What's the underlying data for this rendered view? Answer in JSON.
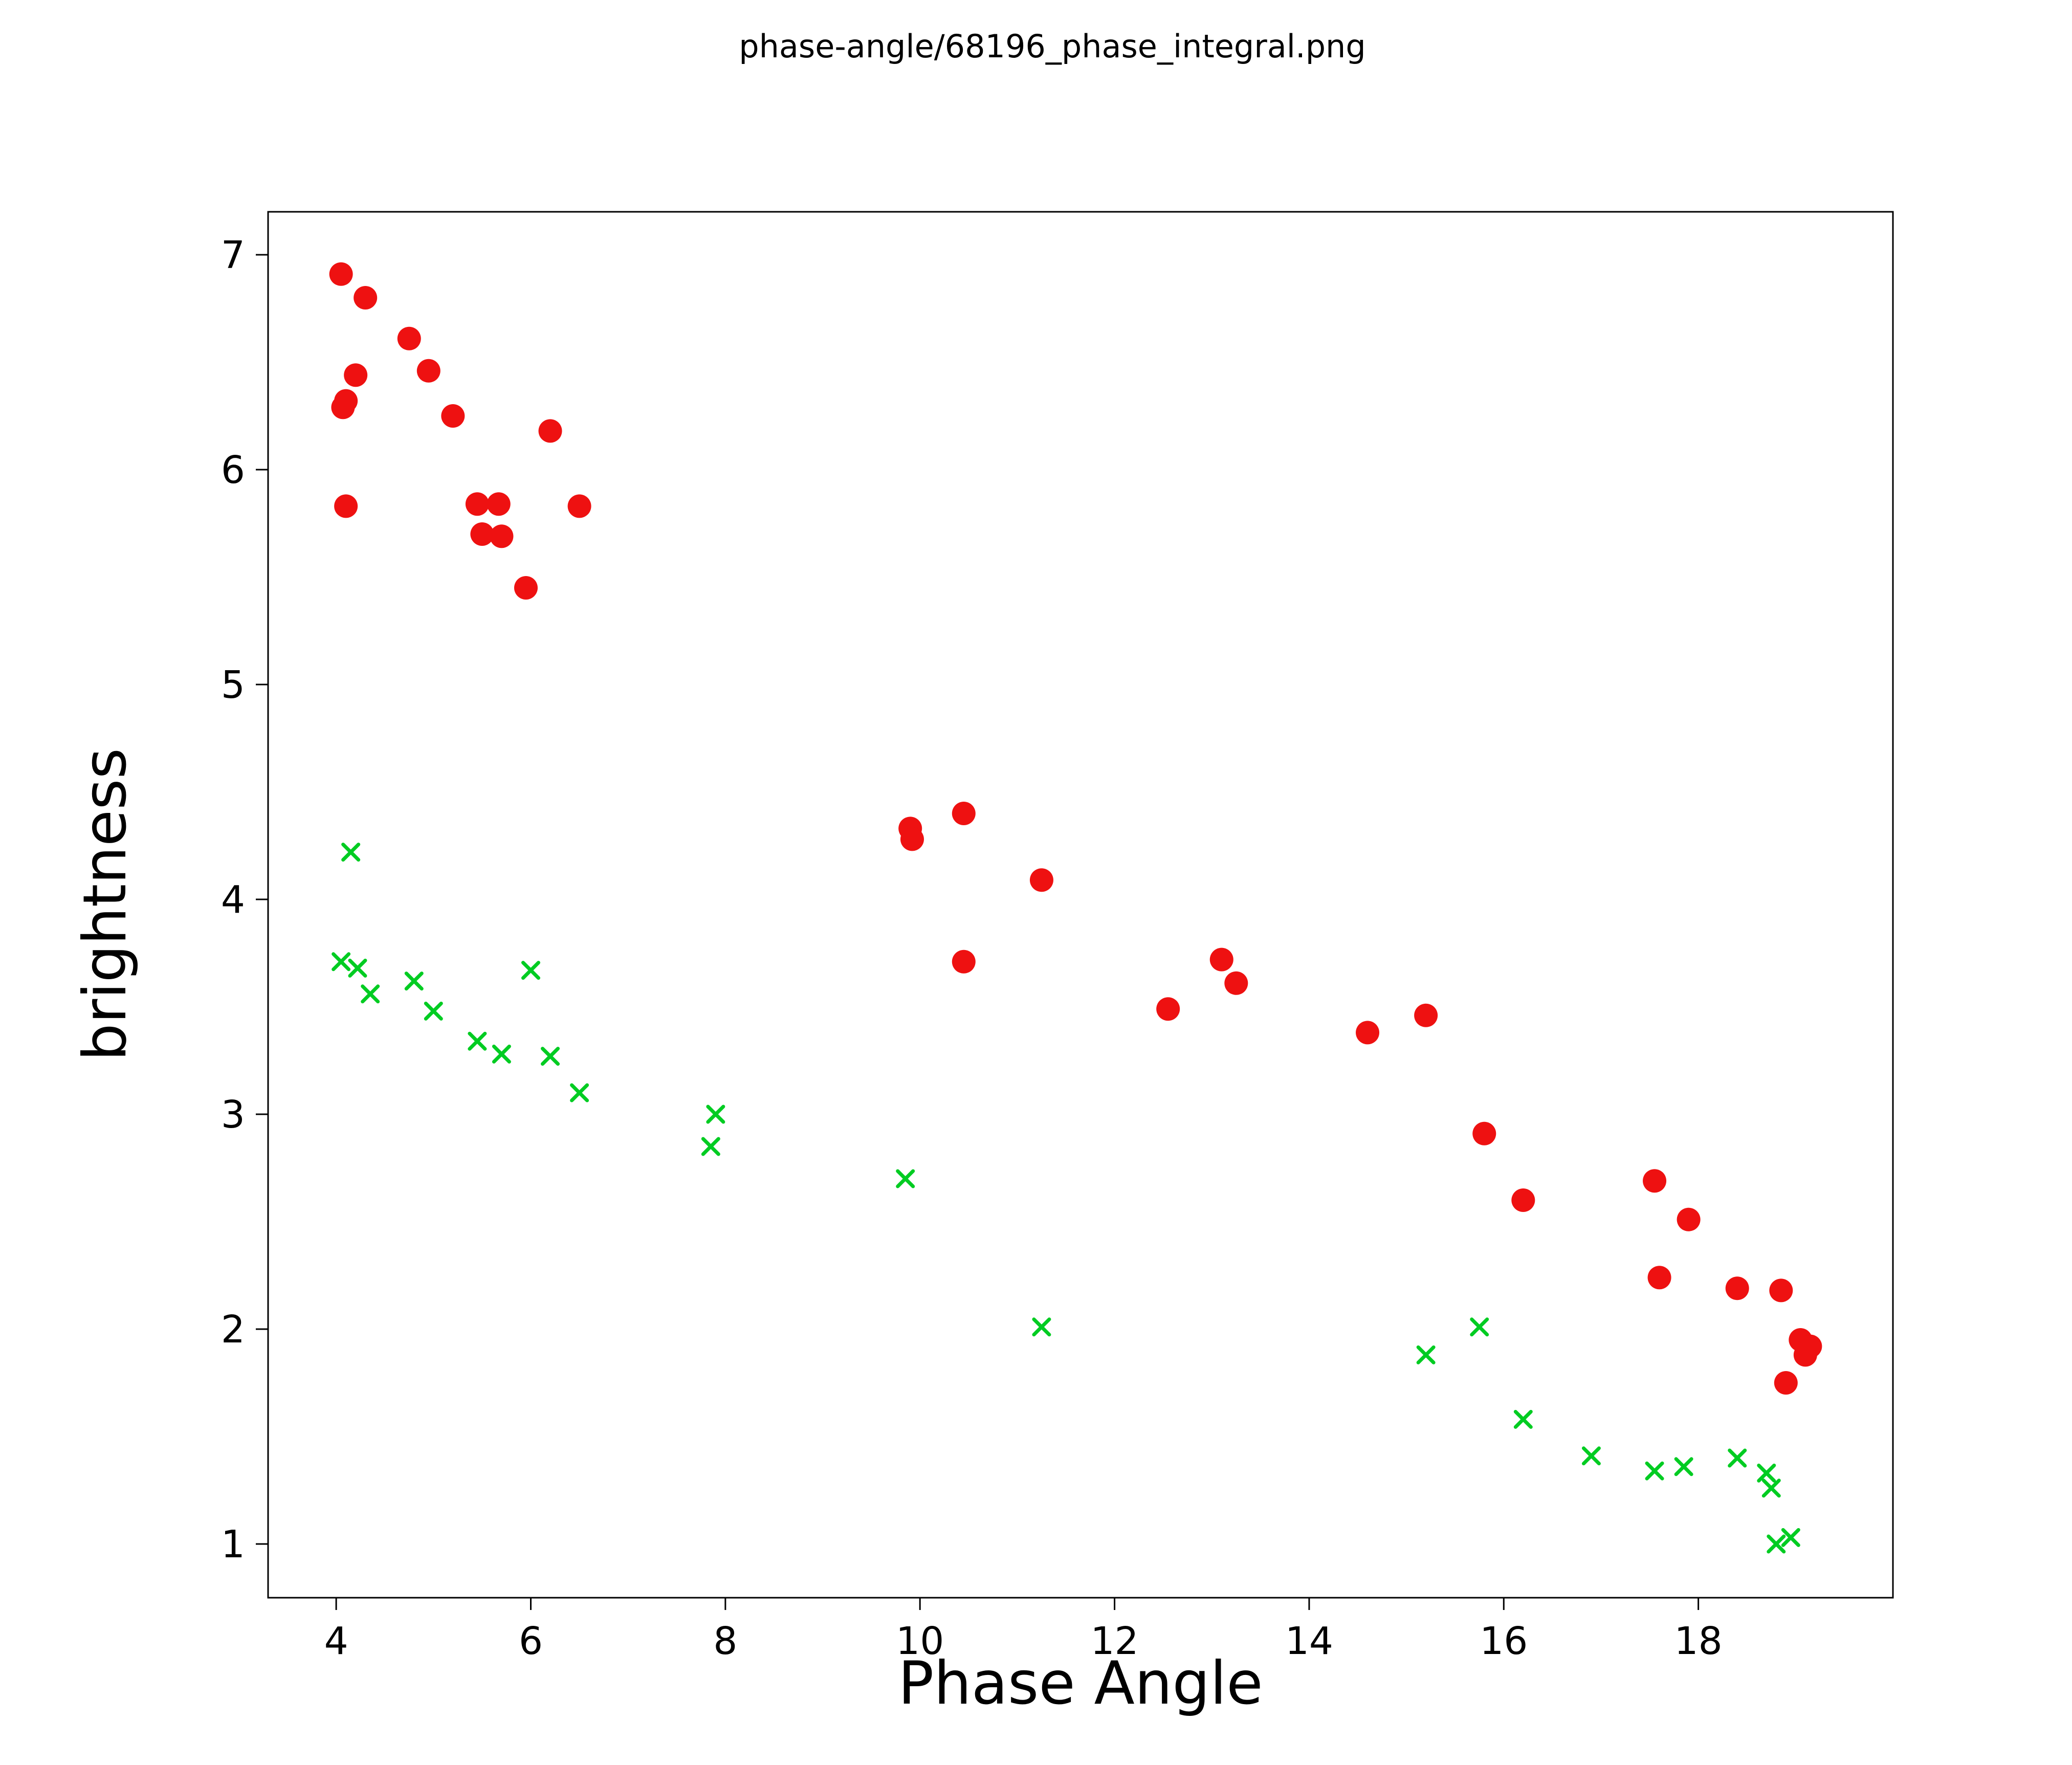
{
  "page_title": "phase-angle/68196_phase_integral.png",
  "chart_data": {
    "type": "scatter",
    "title": "phase-angle/68196_phase_integral.png",
    "xlabel": "Phase Angle",
    "ylabel": "brightness",
    "xlim": [
      3.3,
      20.0
    ],
    "ylim": [
      0.75,
      7.2
    ],
    "xticks": [
      4,
      6,
      8,
      10,
      12,
      14,
      16,
      18
    ],
    "yticks": [
      1,
      2,
      3,
      4,
      5,
      6,
      7
    ],
    "grid": false,
    "legend": null,
    "background_color": "#ffffff",
    "spine_color": "#000000",
    "series": [
      {
        "name": "red-circles",
        "marker": "circle",
        "color": "#ee1111",
        "marker_size": 23,
        "points": [
          [
            4.05,
            6.91
          ],
          [
            4.3,
            6.8
          ],
          [
            4.75,
            6.61
          ],
          [
            4.95,
            6.46
          ],
          [
            4.2,
            6.44
          ],
          [
            4.1,
            6.32
          ],
          [
            4.07,
            6.29
          ],
          [
            5.2,
            6.25
          ],
          [
            6.2,
            6.18
          ],
          [
            5.45,
            5.84
          ],
          [
            5.67,
            5.84
          ],
          [
            4.1,
            5.83
          ],
          [
            6.5,
            5.83
          ],
          [
            5.5,
            5.7
          ],
          [
            5.7,
            5.69
          ],
          [
            5.95,
            5.45
          ],
          [
            10.45,
            4.4
          ],
          [
            9.9,
            4.33
          ],
          [
            9.92,
            4.28
          ],
          [
            11.25,
            4.09
          ],
          [
            13.1,
            3.72
          ],
          [
            10.45,
            3.71
          ],
          [
            13.25,
            3.61
          ],
          [
            12.55,
            3.49
          ],
          [
            15.2,
            3.46
          ],
          [
            14.6,
            3.38
          ],
          [
            15.8,
            2.91
          ],
          [
            17.55,
            2.69
          ],
          [
            16.2,
            2.6
          ],
          [
            17.9,
            2.51
          ],
          [
            17.6,
            2.24
          ],
          [
            18.4,
            2.19
          ],
          [
            18.85,
            2.18
          ],
          [
            19.05,
            1.95
          ],
          [
            19.15,
            1.92
          ],
          [
            19.1,
            1.88
          ],
          [
            18.9,
            1.75
          ]
        ]
      },
      {
        "name": "green-crosses",
        "marker": "x",
        "color": "#00cc22",
        "marker_size": 15,
        "points": [
          [
            4.15,
            4.22
          ],
          [
            4.05,
            3.71
          ],
          [
            4.22,
            3.68
          ],
          [
            4.35,
            3.56
          ],
          [
            4.8,
            3.62
          ],
          [
            5.0,
            3.48
          ],
          [
            5.45,
            3.34
          ],
          [
            5.7,
            3.28
          ],
          [
            6.0,
            3.67
          ],
          [
            6.2,
            3.27
          ],
          [
            6.5,
            3.1
          ],
          [
            7.9,
            3.0
          ],
          [
            7.85,
            2.85
          ],
          [
            9.85,
            2.7
          ],
          [
            11.25,
            2.01
          ],
          [
            15.75,
            2.01
          ],
          [
            15.2,
            1.88
          ],
          [
            16.2,
            1.58
          ],
          [
            16.9,
            1.41
          ],
          [
            18.4,
            1.4
          ],
          [
            17.85,
            1.36
          ],
          [
            17.55,
            1.34
          ],
          [
            18.7,
            1.33
          ],
          [
            18.75,
            1.26
          ],
          [
            18.95,
            1.03
          ],
          [
            18.8,
            1.0
          ]
        ]
      }
    ]
  }
}
